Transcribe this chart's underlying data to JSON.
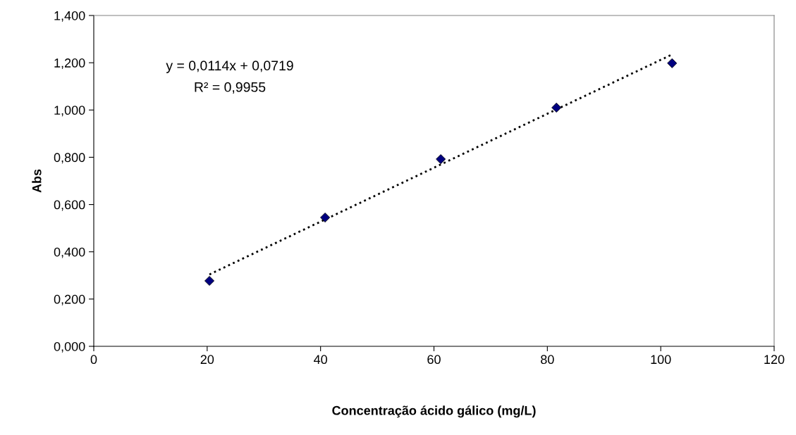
{
  "chart_data": {
    "type": "scatter",
    "xlabel": "Concentração ácido gálico (mg/L)",
    "ylabel": "Abs",
    "series": [
      {
        "color": "#000080",
        "marker": "diamond",
        "x": [
          20.4,
          40.8,
          61.2,
          81.6,
          102
        ],
        "values": [
          0.277,
          0.545,
          0.792,
          1.01,
          1.198
        ]
      },
      {
        "type": "line",
        "color": "#000000",
        "line_style": "dotted",
        "marker": "none",
        "x": [
          20.4,
          102
        ],
        "values": [
          0.304,
          1.235
        ]
      }
    ],
    "xlim": [
      0,
      120
    ],
    "xticks": [
      0,
      20,
      40,
      60,
      80,
      100,
      120
    ],
    "ylim": [
      0,
      1.4
    ],
    "yticks": [
      {
        "value": 0,
        "label": "0,000"
      },
      {
        "value": 0.2,
        "label": "0,200"
      },
      {
        "value": 0.4,
        "label": "0,400"
      },
      {
        "value": 0.6,
        "label": "0,600"
      },
      {
        "value": 0.8,
        "label": "0,800"
      },
      {
        "value": 1.0,
        "label": "1,000"
      },
      {
        "value": 1.2,
        "label": "1,200"
      },
      {
        "value": 1.4,
        "label": "1,400"
      }
    ],
    "annotations": [
      "y = 0,0114x + 0,0719",
      "R² = 0,9955"
    ],
    "grid": false,
    "legend": false
  }
}
